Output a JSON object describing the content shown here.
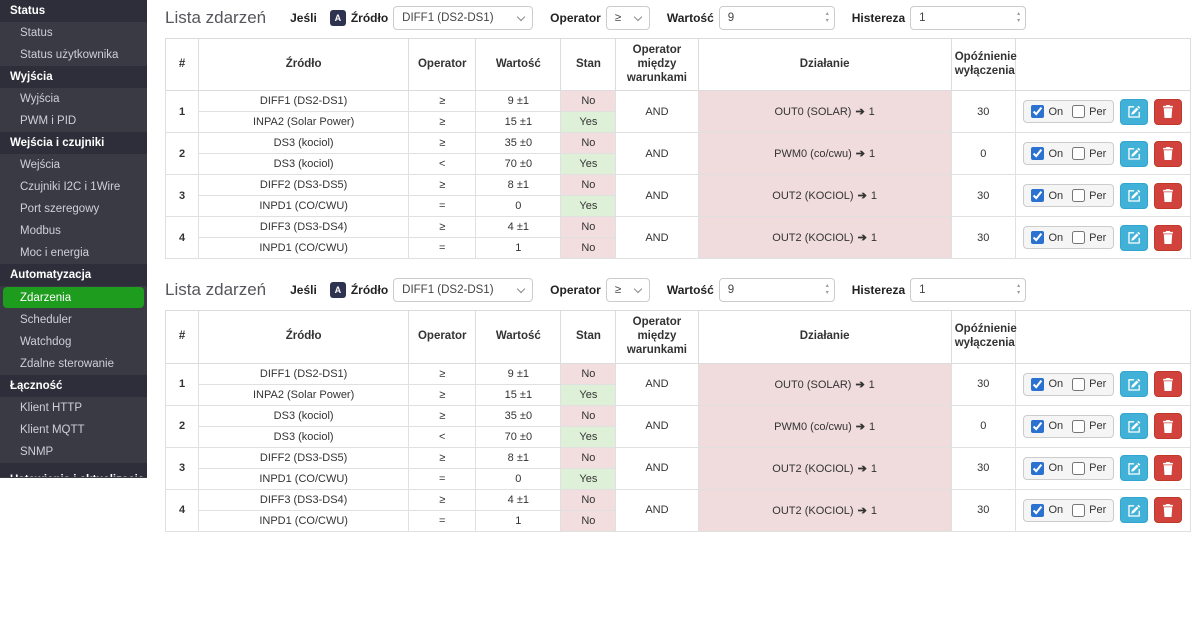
{
  "colors": {
    "sidebar_bg": "#3a3a45",
    "sidebar_header_bg": "#2e2e3a",
    "sidebar_item_text": "#cfcfd7",
    "active_green": "#1d9c1d",
    "state_yes": "#dff0d8",
    "state_no": "#f2dede",
    "action_cell": "#f0dcdc",
    "edit_btn": "#41b1d8",
    "edit_btn_border": "#33a6cf",
    "delete_btn": "#d2423d",
    "delete_btn_border": "#c0392b",
    "badge_bg": "#2e3350",
    "check_accent": "#2a71d0"
  },
  "icons": {
    "arrow_right": "➔",
    "spin_up": "▴",
    "spin_down": "▾"
  },
  "action_controls": {
    "on_label": "On",
    "per_label": "Per"
  },
  "sidebar": {
    "sections": [
      {
        "header": "Status",
        "items": [
          {
            "label": "Status"
          },
          {
            "label": "Status użytkownika"
          }
        ]
      },
      {
        "header": "Wyjścia",
        "items": [
          {
            "label": "Wyjścia"
          },
          {
            "label": "PWM i PID"
          }
        ]
      },
      {
        "header": "Wejścia i czujniki",
        "items": [
          {
            "label": "Wejścia"
          },
          {
            "label": "Czujniki I2C i 1Wire"
          },
          {
            "label": "Port szeregowy"
          },
          {
            "label": "Modbus"
          },
          {
            "label": "Moc i energia"
          }
        ]
      },
      {
        "header": "Automatyzacja",
        "items": [
          {
            "label": "Zdarzenia",
            "active": true
          },
          {
            "label": "Scheduler"
          },
          {
            "label": "Watchdog"
          },
          {
            "label": "Zdalne sterowanie"
          }
        ]
      },
      {
        "header": "Łączność",
        "items": [
          {
            "label": "Klient HTTP"
          },
          {
            "label": "Klient MQTT"
          },
          {
            "label": "SNMP"
          }
        ]
      },
      {
        "header": "Ustawienia i aktualizacja",
        "clipped": true,
        "items": []
      }
    ]
  },
  "sections": [
    {
      "title": "Lista zdarzeń",
      "filter": {
        "if_label": "Jeśli",
        "badge": "A",
        "source_label": "Źródło",
        "source_value": "DIFF1 (DS2-DS1)",
        "operator_label": "Operator",
        "operator_value": "≥",
        "value_label": "Wartość",
        "value": "9",
        "hysteresis_label": "Histereza",
        "hysteresis": "1"
      },
      "table": {
        "headers": [
          "#",
          "Źródło",
          "Operator",
          "Wartość",
          "Stan",
          "Operator między warunkami",
          "Działanie",
          "Opóźnienie wyłączenia",
          ""
        ],
        "rows": [
          {
            "num": "1",
            "logic": "AND",
            "action_target": "OUT0 (SOLAR)",
            "action_value": "1",
            "delay": "30",
            "on": true,
            "per": false,
            "conditions": [
              {
                "source": "DIFF1 (DS2-DS1)",
                "operator": "≥",
                "value": "9 ±1",
                "state": "No"
              },
              {
                "source": "INPA2 (Solar Power)",
                "operator": "≥",
                "value": "15 ±1",
                "state": "Yes"
              }
            ]
          },
          {
            "num": "2",
            "logic": "AND",
            "action_target": "PWM0 (co/cwu)",
            "action_value": "1",
            "delay": "0",
            "on": true,
            "per": false,
            "conditions": [
              {
                "source": "DS3 (kociol)",
                "operator": "≥",
                "value": "35 ±0",
                "state": "No"
              },
              {
                "source": "DS3 (kociol)",
                "operator": "<",
                "value": "70 ±0",
                "state": "Yes"
              }
            ]
          },
          {
            "num": "3",
            "logic": "AND",
            "action_target": "OUT2 (KOCIOL)",
            "action_value": "1",
            "delay": "30",
            "on": true,
            "per": false,
            "conditions": [
              {
                "source": "DIFF2 (DS3-DS5)",
                "operator": "≥",
                "value": "8 ±1",
                "state": "No"
              },
              {
                "source": "INPD1 (CO/CWU)",
                "operator": "=",
                "value": "0",
                "state": "Yes"
              }
            ]
          },
          {
            "num": "4",
            "logic": "AND",
            "action_target": "OUT2 (KOCIOL)",
            "action_value": "1",
            "delay": "30",
            "on": true,
            "per": false,
            "conditions": [
              {
                "source": "DIFF3 (DS3-DS4)",
                "operator": "≥",
                "value": "4 ±1",
                "state": "No"
              },
              {
                "source": "INPD1 (CO/CWU)",
                "operator": "=",
                "value": "1",
                "state": "No"
              }
            ]
          }
        ]
      }
    },
    {
      "title": "Lista zdarzeń",
      "filter": {
        "if_label": "Jeśli",
        "badge": "A",
        "source_label": "Źródło",
        "source_value": "DIFF1 (DS2-DS1)",
        "operator_label": "Operator",
        "operator_value": "≥",
        "value_label": "Wartość",
        "value": "9",
        "hysteresis_label": "Histereza",
        "hysteresis": "1"
      },
      "table": {
        "headers": [
          "#",
          "Źródło",
          "Operator",
          "Wartość",
          "Stan",
          "Operator między warunkami",
          "Działanie",
          "Opóźnienie wyłączenia",
          ""
        ],
        "rows": [
          {
            "num": "1",
            "logic": "AND",
            "action_target": "OUT0 (SOLAR)",
            "action_value": "1",
            "delay": "30",
            "on": true,
            "per": false,
            "conditions": [
              {
                "source": "DIFF1 (DS2-DS1)",
                "operator": "≥",
                "value": "9 ±1",
                "state": "No"
              },
              {
                "source": "INPA2 (Solar Power)",
                "operator": "≥",
                "value": "15 ±1",
                "state": "Yes"
              }
            ]
          },
          {
            "num": "2",
            "logic": "AND",
            "action_target": "PWM0 (co/cwu)",
            "action_value": "1",
            "delay": "0",
            "on": true,
            "per": false,
            "conditions": [
              {
                "source": "DS3 (kociol)",
                "operator": "≥",
                "value": "35 ±0",
                "state": "No"
              },
              {
                "source": "DS3 (kociol)",
                "operator": "<",
                "value": "70 ±0",
                "state": "Yes"
              }
            ]
          },
          {
            "num": "3",
            "logic": "AND",
            "action_target": "OUT2 (KOCIOL)",
            "action_value": "1",
            "delay": "30",
            "on": true,
            "per": false,
            "conditions": [
              {
                "source": "DIFF2 (DS3-DS5)",
                "operator": "≥",
                "value": "8 ±1",
                "state": "No"
              },
              {
                "source": "INPD1 (CO/CWU)",
                "operator": "=",
                "value": "0",
                "state": "Yes"
              }
            ]
          },
          {
            "num": "4",
            "logic": "AND",
            "action_target": "OUT2 (KOCIOL)",
            "action_value": "1",
            "delay": "30",
            "on": true,
            "per": false,
            "conditions": [
              {
                "source": "DIFF3 (DS3-DS4)",
                "operator": "≥",
                "value": "4 ±1",
                "state": "No"
              },
              {
                "source": "INPD1 (CO/CWU)",
                "operator": "=",
                "value": "1",
                "state": "No"
              }
            ]
          }
        ]
      }
    }
  ]
}
